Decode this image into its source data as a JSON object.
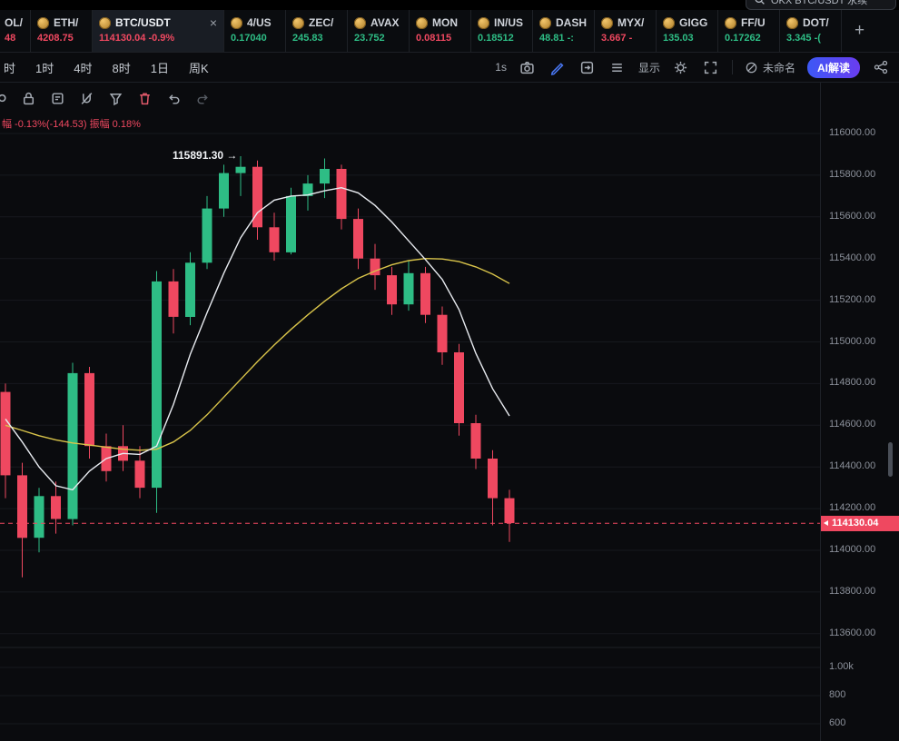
{
  "colors": {
    "up": "#2ebd85",
    "down": "#ef4860",
    "accent_blue": "#3d58f5",
    "ma_fast": "#e8ebf0",
    "ma_slow": "#d9c44a",
    "grid": "#17191e",
    "axis_text": "#8b909a"
  },
  "topbar": {
    "search_text": "OKX BTC/USDT 永续"
  },
  "tabbar": {
    "add_label": "+",
    "tabs": [
      {
        "symbol": "OL/",
        "price": "48",
        "dir": "down",
        "partial": true
      },
      {
        "symbol": "ETH/",
        "price": "4208.75",
        "dir": "down"
      },
      {
        "symbol": "BTC/USDT",
        "price": "114130.04",
        "change": "-0.9%",
        "dir": "down",
        "active": true
      },
      {
        "symbol": "4/US",
        "price": "0.17040",
        "dir": "up"
      },
      {
        "symbol": "ZEC/",
        "price": "245.83",
        "dir": "up"
      },
      {
        "symbol": "AVAX",
        "price": "23.752",
        "dir": "up"
      },
      {
        "symbol": "MON",
        "price": "0.08115",
        "dir": "down"
      },
      {
        "symbol": "IN/US",
        "price": "0.18512",
        "dir": "up"
      },
      {
        "symbol": "DASH",
        "price": "48.81 -:",
        "dir": "up"
      },
      {
        "symbol": "MYX/",
        "price": "3.667 -",
        "dir": "down"
      },
      {
        "symbol": "GIGG",
        "price": "135.03",
        "dir": "up"
      },
      {
        "symbol": "FF/U",
        "price": "0.17262",
        "dir": "up"
      },
      {
        "symbol": "DOT/",
        "price": "3.345 -(",
        "dir": "up"
      }
    ]
  },
  "toolbar": {
    "timeframes": [
      "时",
      "1时",
      "4时",
      "8时",
      "1日",
      "周K"
    ],
    "interval_label": "1s",
    "display_label": "显示",
    "layout_label": "未命名",
    "ai_label": "AI解读"
  },
  "chart": {
    "info_line": "幅 -0.13%(-144.53) 振幅 0.18%",
    "annotation": "115891.30 →",
    "last_price": "114130.04",
    "price_axis": [
      "116000.00",
      "115800.00",
      "115600.00",
      "115400.00",
      "115200.00",
      "115000.00",
      "114800.00",
      "114600.00",
      "114400.00",
      "114200.00",
      "114000.00",
      "113800.00",
      "113600.00"
    ],
    "volume_axis": [
      "1.00k",
      "800",
      "600"
    ]
  },
  "chart_data": {
    "type": "candlestick",
    "symbol": "BTC/USDT",
    "title": "BTC/USDT",
    "last_price": 114130.04,
    "high_annotation": 115891.3,
    "change_pct": -0.9,
    "ylim": [
      113600,
      116000
    ],
    "grid": true,
    "candles_ohlc": [
      [
        114760,
        114800,
        114250,
        114360
      ],
      [
        114360,
        114420,
        113870,
        114060
      ],
      [
        114060,
        114300,
        113990,
        114260
      ],
      [
        114260,
        114330,
        114080,
        114150
      ],
      [
        114150,
        114900,
        114120,
        114850
      ],
      [
        114850,
        114880,
        114440,
        114500
      ],
      [
        114500,
        114560,
        114330,
        114380
      ],
      [
        114500,
        114600,
        114380,
        114430
      ],
      [
        114430,
        114500,
        114250,
        114300
      ],
      [
        114300,
        115340,
        114180,
        115290
      ],
      [
        115290,
        115350,
        115040,
        115120
      ],
      [
        115120,
        115430,
        115080,
        115380
      ],
      [
        115380,
        115700,
        115350,
        115640
      ],
      [
        115640,
        115850,
        115600,
        115810
      ],
      [
        115810,
        115891,
        115700,
        115840
      ],
      [
        115840,
        115870,
        115490,
        115550
      ],
      [
        115550,
        115620,
        115390,
        115430
      ],
      [
        115430,
        115740,
        115420,
        115700
      ],
      [
        115700,
        115800,
        115630,
        115760
      ],
      [
        115760,
        115880,
        115690,
        115830
      ],
      [
        115830,
        115850,
        115540,
        115590
      ],
      [
        115590,
        115640,
        115350,
        115400
      ],
      [
        115400,
        115470,
        115250,
        115320
      ],
      [
        115320,
        115360,
        115130,
        115180
      ],
      [
        115180,
        115390,
        115150,
        115330
      ],
      [
        115330,
        115360,
        115090,
        115130
      ],
      [
        115130,
        115170,
        114890,
        114950
      ],
      [
        114950,
        114990,
        114550,
        114610
      ],
      [
        114610,
        114650,
        114390,
        114440
      ],
      [
        114440,
        114480,
        114120,
        114250
      ],
      [
        114250,
        114290,
        114040,
        114130
      ]
    ],
    "ma_fast": [
      114630,
      114520,
      114400,
      114310,
      114290,
      114380,
      114440,
      114465,
      114460,
      114500,
      114700,
      114940,
      115140,
      115330,
      115500,
      115620,
      115680,
      115700,
      115705,
      115725,
      115740,
      115715,
      115655,
      115575,
      115485,
      115395,
      115300,
      115155,
      114945,
      114775,
      114645
    ],
    "ma_slow": [
      114600,
      114575,
      114550,
      114530,
      114515,
      114505,
      114495,
      114485,
      114480,
      114485,
      114520,
      114575,
      114650,
      114735,
      114820,
      114905,
      114985,
      115060,
      115130,
      115195,
      115255,
      115305,
      115340,
      115370,
      115390,
      115400,
      115398,
      115385,
      115360,
      115325,
      115280
    ]
  }
}
